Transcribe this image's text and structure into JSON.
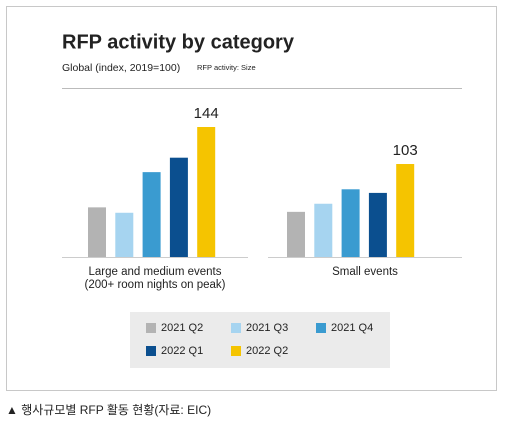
{
  "chart_data": {
    "type": "bar",
    "title": "RFP activity by category",
    "subtitle": "Global (index, 2019=100)",
    "note": "RFP activity: Size",
    "caption": "▲ 행사규모별 RFP 활동 현황(자료: EIC)",
    "categories": [
      "Large and medium events\n(200+ room nights on peak)",
      "Small events"
    ],
    "series": [
      {
        "name": "2021 Q2",
        "color": "#b3b3b3",
        "values": [
          55,
          50
        ]
      },
      {
        "name": "2021 Q3",
        "color": "#a6d4f0",
        "values": [
          49,
          59
        ]
      },
      {
        "name": "2021 Q4",
        "color": "#3a9bd0",
        "values": [
          94,
          75
        ]
      },
      {
        "name": "2022 Q1",
        "color": "#0b4f8f",
        "values": [
          110,
          71
        ]
      },
      {
        "name": "2022 Q2",
        "color": "#f5c400",
        "values": [
          144,
          103
        ],
        "show_values": true
      }
    ]
  }
}
